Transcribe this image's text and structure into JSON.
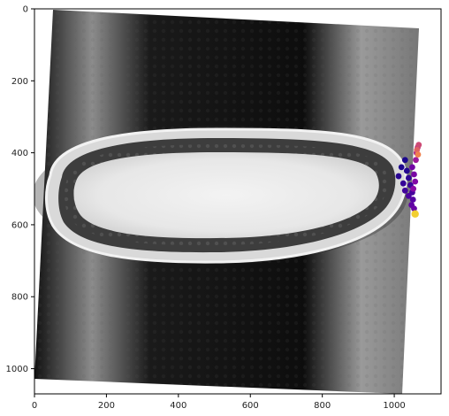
{
  "chart_data": {
    "type": "scatter",
    "title": "",
    "xlabel": "",
    "ylabel": "",
    "xlim": [
      0,
      1130
    ],
    "ylim": [
      1070,
      0
    ],
    "x_ticks": [
      0,
      200,
      400,
      600,
      800,
      1000
    ],
    "y_ticks": [
      0,
      200,
      400,
      600,
      800,
      1000
    ],
    "x_tick_labels": [
      "0",
      "200",
      "400",
      "600",
      "800",
      "1000"
    ],
    "y_tick_labels": [
      "0",
      "200",
      "400",
      "600",
      "800",
      "1000"
    ],
    "background": "grayscale microscopy image of an elongated embryo",
    "colormap": "plasma",
    "series": [
      {
        "points": [
          {
            "x": 1030,
            "y": 420,
            "c": 0.05
          },
          {
            "x": 1020,
            "y": 440,
            "c": 0.06
          },
          {
            "x": 1035,
            "y": 450,
            "c": 0.08
          },
          {
            "x": 1012,
            "y": 465,
            "c": 0.1
          },
          {
            "x": 1040,
            "y": 470,
            "c": 0.12
          },
          {
            "x": 1025,
            "y": 485,
            "c": 0.14
          },
          {
            "x": 1045,
            "y": 490,
            "c": 0.16
          },
          {
            "x": 1030,
            "y": 505,
            "c": 0.18
          },
          {
            "x": 1050,
            "y": 510,
            "c": 0.2
          },
          {
            "x": 1040,
            "y": 520,
            "c": 0.22
          },
          {
            "x": 1052,
            "y": 530,
            "c": 0.26
          },
          {
            "x": 1048,
            "y": 545,
            "c": 0.3
          },
          {
            "x": 1055,
            "y": 555,
            "c": 0.34
          },
          {
            "x": 1050,
            "y": 440,
            "c": 0.38
          },
          {
            "x": 1055,
            "y": 460,
            "c": 0.42
          },
          {
            "x": 1058,
            "y": 480,
            "c": 0.46
          },
          {
            "x": 1053,
            "y": 500,
            "c": 0.5
          },
          {
            "x": 1060,
            "y": 420,
            "c": 0.56
          },
          {
            "x": 1062,
            "y": 400,
            "c": 0.62
          },
          {
            "x": 1065,
            "y": 385,
            "c": 0.68
          },
          {
            "x": 1068,
            "y": 378,
            "c": 0.74
          },
          {
            "x": 1063,
            "y": 392,
            "c": 0.82
          },
          {
            "x": 1066,
            "y": 405,
            "c": 0.9
          },
          {
            "x": 1058,
            "y": 570,
            "c": 0.97
          }
        ]
      }
    ]
  }
}
